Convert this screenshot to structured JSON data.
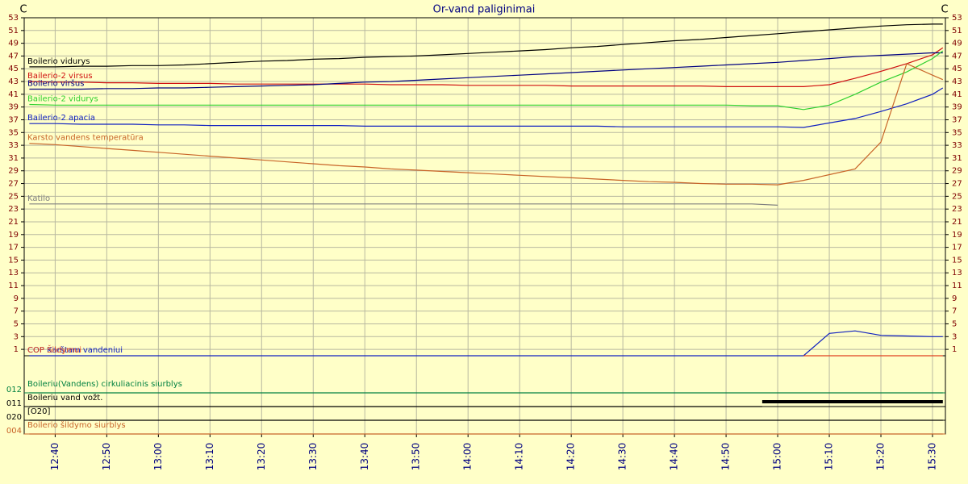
{
  "chart_data": [
    {
      "type": "line",
      "title": "Or-vand paliginimai",
      "ylabel": "C",
      "y2label": "C",
      "x": [
        755,
        760,
        765,
        770,
        775,
        780,
        785,
        790,
        795,
        800,
        805,
        810,
        815,
        820,
        825,
        830,
        835,
        840,
        845,
        850,
        855,
        860,
        865,
        870,
        875,
        880,
        885,
        890,
        895,
        900,
        905,
        910,
        915,
        920,
        925,
        930,
        932
      ],
      "xlim": [
        754,
        932.5
      ],
      "xticks": [
        {
          "value": 760,
          "label": "12:40"
        },
        {
          "value": 770,
          "label": "12:50"
        },
        {
          "value": 780,
          "label": "13:00"
        },
        {
          "value": 790,
          "label": "13:10"
        },
        {
          "value": 800,
          "label": "13:20"
        },
        {
          "value": 810,
          "label": "13:30"
        },
        {
          "value": 820,
          "label": "13:40"
        },
        {
          "value": 830,
          "label": "13:50"
        },
        {
          "value": 840,
          "label": "14:00"
        },
        {
          "value": 850,
          "label": "14:10"
        },
        {
          "value": 860,
          "label": "14:20"
        },
        {
          "value": 870,
          "label": "14:30"
        },
        {
          "value": 880,
          "label": "14:40"
        },
        {
          "value": 890,
          "label": "14:50"
        },
        {
          "value": 900,
          "label": "15:00"
        },
        {
          "value": 910,
          "label": "15:10"
        },
        {
          "value": 920,
          "label": "15:20"
        },
        {
          "value": 930,
          "label": "15:30"
        }
      ],
      "ylim": [
        0,
        53
      ],
      "yticks": [
        1,
        3,
        5,
        7,
        9,
        11,
        13,
        15,
        17,
        19,
        21,
        23,
        25,
        27,
        29,
        31,
        33,
        35,
        37,
        39,
        41,
        43,
        45,
        47,
        49,
        51,
        53
      ],
      "grid": true,
      "series": [
        {
          "name": "Boilerio vidurys",
          "color": "#000000",
          "values": [
            45.3,
            45.3,
            45.4,
            45.4,
            45.5,
            45.5,
            45.6,
            45.8,
            46,
            46.2,
            46.3,
            46.5,
            46.6,
            46.8,
            46.9,
            47.0,
            47.2,
            47.4,
            47.6,
            47.8,
            48.0,
            48.3,
            48.5,
            48.8,
            49.1,
            49.4,
            49.6,
            49.9,
            50.2,
            50.5,
            50.8,
            51.1,
            51.4,
            51.7,
            51.9,
            52.0,
            52.0
          ]
        },
        {
          "name": "Bailerio-2 virsus",
          "color": "#d01010",
          "values": [
            43.0,
            42.9,
            42.9,
            42.8,
            42.8,
            42.7,
            42.7,
            42.7,
            42.6,
            42.6,
            42.6,
            42.6,
            42.6,
            42.6,
            42.5,
            42.5,
            42.5,
            42.4,
            42.4,
            42.4,
            42.4,
            42.3,
            42.3,
            42.3,
            42.3,
            42.3,
            42.3,
            42.2,
            42.2,
            42.2,
            42.2,
            42.5,
            43.5,
            44.6,
            45.8,
            47.2,
            48.3
          ]
        },
        {
          "name": "Boilerio viršus",
          "color": "#000080",
          "values": [
            41.8,
            41.8,
            41.8,
            41.9,
            41.9,
            42.0,
            42.0,
            42.1,
            42.2,
            42.3,
            42.4,
            42.5,
            42.7,
            42.9,
            43.0,
            43.2,
            43.4,
            43.6,
            43.8,
            44.0,
            44.2,
            44.4,
            44.6,
            44.8,
            45.0,
            45.2,
            45.4,
            45.6,
            45.8,
            46.0,
            46.3,
            46.6,
            46.9,
            47.1,
            47.3,
            47.5,
            47.5
          ]
        },
        {
          "name": "Bailerio-2 vidurys",
          "color": "#30d030",
          "values": [
            39.4,
            39.3,
            39.3,
            39.3,
            39.3,
            39.3,
            39.3,
            39.3,
            39.3,
            39.3,
            39.3,
            39.3,
            39.3,
            39.3,
            39.3,
            39.3,
            39.3,
            39.3,
            39.3,
            39.3,
            39.3,
            39.3,
            39.3,
            39.3,
            39.3,
            39.3,
            39.3,
            39.3,
            39.2,
            39.2,
            38.6,
            39.3,
            41.0,
            42.9,
            44.5,
            46.6,
            47.8
          ]
        },
        {
          "name": "Bailerio-2 apacia",
          "color": "#1020c0",
          "values": [
            36.4,
            36.4,
            36.3,
            36.3,
            36.3,
            36.2,
            36.2,
            36.1,
            36.1,
            36.1,
            36.1,
            36.1,
            36.1,
            36.0,
            36.0,
            36.0,
            36.0,
            36.0,
            36.0,
            36.0,
            36.0,
            36.0,
            36.0,
            35.9,
            35.9,
            35.9,
            35.9,
            35.9,
            35.9,
            35.9,
            35.8,
            36.5,
            37.2,
            38.3,
            39.5,
            41.0,
            42.0
          ]
        },
        {
          "name": "Karsto vandens temperatūra",
          "color": "#c86428",
          "values": [
            33.3,
            33.1,
            32.8,
            32.5,
            32.2,
            31.9,
            31.6,
            31.3,
            31.0,
            30.7,
            30.4,
            30.1,
            29.8,
            29.6,
            29.3,
            29.1,
            28.9,
            28.7,
            28.5,
            28.3,
            28.1,
            27.9,
            27.7,
            27.5,
            27.3,
            27.2,
            27.0,
            26.9,
            26.9,
            26.8,
            27.5,
            28.4,
            29.3,
            33.5,
            45.8,
            44.0,
            43.3
          ]
        },
        {
          "name": "Katilo",
          "color": "#808080",
          "values": [
            23.8,
            23.8,
            23.8,
            23.8,
            23.8,
            23.8,
            23.8,
            23.8,
            23.8,
            23.8,
            23.8,
            23.8,
            23.8,
            23.8,
            23.8,
            23.8,
            23.8,
            23.8,
            23.8,
            23.8,
            23.8,
            23.8,
            23.8,
            23.8,
            23.8,
            23.8,
            23.8,
            23.8,
            23.8,
            23.6,
            null,
            null,
            null,
            null,
            null,
            null,
            null
          ]
        },
        {
          "name": "COP Karštam vandeniui",
          "color": "#1020c0",
          "values": [
            0,
            0,
            0,
            0,
            0,
            0,
            0,
            0,
            0,
            0,
            0,
            0,
            0,
            0,
            0,
            0,
            0,
            0,
            0,
            0,
            0,
            0,
            0,
            0,
            0,
            0,
            0,
            0,
            0,
            0,
            0,
            3.5,
            3.9,
            3.2,
            3.1,
            3.0,
            3.0
          ]
        },
        {
          "name": "COP Šildymui",
          "color": "#e04020",
          "values": [
            null,
            null,
            null,
            null,
            null,
            null,
            null,
            null,
            null,
            null,
            null,
            null,
            null,
            null,
            null,
            null,
            null,
            null,
            null,
            null,
            null,
            null,
            null,
            null,
            null,
            null,
            null,
            null,
            null,
            null,
            0,
            0,
            0,
            0,
            0,
            0,
            0
          ]
        }
      ]
    },
    {
      "type": "step",
      "x": [
        755,
        897,
        932
      ],
      "xlim": [
        754,
        932.5
      ],
      "series": [
        {
          "code": "012",
          "name": "Boileriu(Vandens) cirkuliacinis siurblys",
          "color": "#008040",
          "values": [
            0,
            0,
            0
          ]
        },
        {
          "code": "011",
          "name": "Boileriu vand vožt.",
          "color": "#000000",
          "values": [
            0,
            1,
            1
          ]
        },
        {
          "code": "020",
          "name": "[O20]",
          "color": "#000000",
          "values": [
            0,
            0,
            0
          ]
        },
        {
          "code": "004",
          "name": "Boilerio šildymo  siurblys",
          "color": "#c86428",
          "values": [
            0,
            0,
            0
          ]
        }
      ]
    }
  ]
}
